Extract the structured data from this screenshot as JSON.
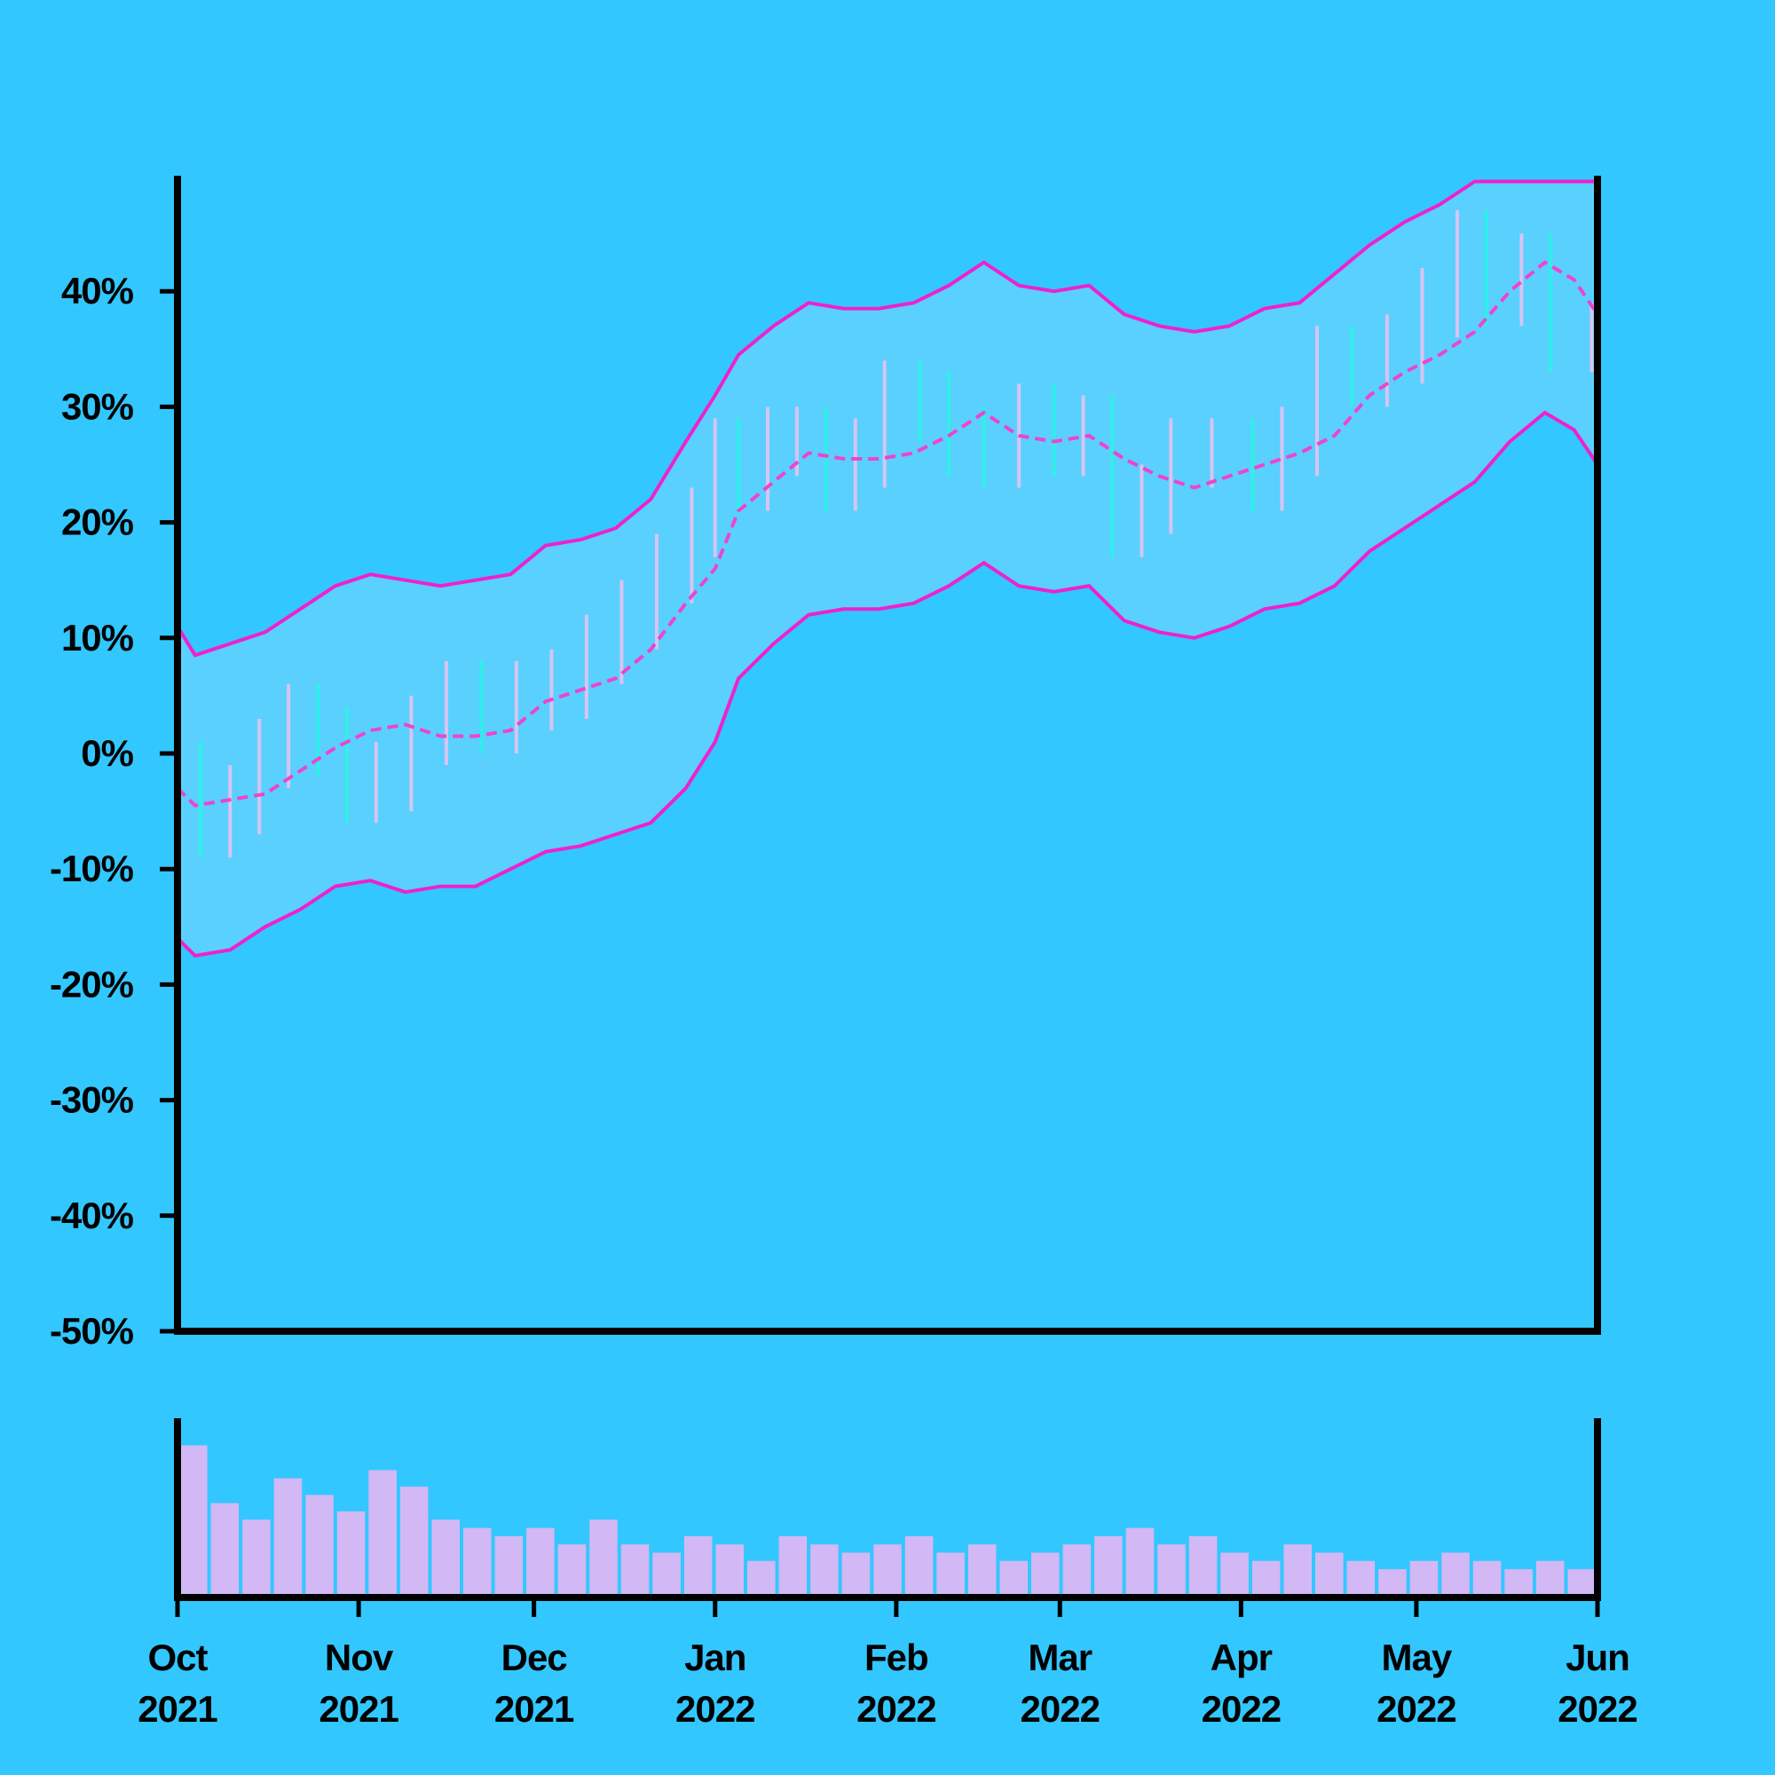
{
  "chart_data": {
    "type": "ohlc",
    "title": "",
    "xlabel": "",
    "ylabel": "",
    "colors": {
      "background": "#33c7ff",
      "band_fill": "#5ad0ff",
      "band_line": "#ee22cc",
      "mid_line": "#ee44cc",
      "up_bar": "#d7c4f2",
      "down_bar": "#2ff0e8",
      "volume_bar": "#d2b8f5",
      "axis": "#000000"
    },
    "price_panel": {
      "ylim": [
        -50,
        50
      ],
      "unit": "%",
      "yticks": [
        {
          "value": 40,
          "label": "40%"
        },
        {
          "value": 30,
          "label": "30%"
        },
        {
          "value": 20,
          "label": "20%"
        },
        {
          "value": 10,
          "label": "10%"
        },
        {
          "value": 0,
          "label": "0%"
        },
        {
          "value": -10,
          "label": "-10%"
        },
        {
          "value": -20,
          "label": "-20%"
        },
        {
          "value": -30,
          "label": "-30%"
        },
        {
          "value": -40,
          "label": "-40%"
        },
        {
          "value": -50,
          "label": "-50%"
        }
      ]
    },
    "xlim": [
      "2021-10-01",
      "2022-06-01"
    ],
    "xticks": [
      {
        "date": "2021-10-01",
        "month": "Oct",
        "year": "2021"
      },
      {
        "date": "2021-11-01",
        "month": "Nov",
        "year": "2021"
      },
      {
        "date": "2021-12-01",
        "month": "Dec",
        "year": "2021"
      },
      {
        "date": "2022-01-01",
        "month": "Jan",
        "year": "2022"
      },
      {
        "date": "2022-02-01",
        "month": "Feb",
        "year": "2022"
      },
      {
        "date": "2022-03-01",
        "month": "Mar",
        "year": "2022"
      },
      {
        "date": "2022-04-01",
        "month": "Apr",
        "year": "2022"
      },
      {
        "date": "2022-05-01",
        "month": "May",
        "year": "2022"
      },
      {
        "date": "2022-06-01",
        "month": "Jun",
        "year": "2022"
      }
    ],
    "series": [
      {
        "role": "close",
        "values": [
          [
            "2021-10-01",
            -2
          ],
          [
            "2021-10-05",
            -6
          ],
          [
            "2021-10-10",
            -4
          ],
          [
            "2021-10-15",
            0
          ],
          [
            "2021-10-20",
            3
          ],
          [
            "2021-10-25",
            1
          ],
          [
            "2021-10-30",
            -3
          ],
          [
            "2021-11-04",
            -2
          ],
          [
            "2021-11-10",
            2
          ],
          [
            "2021-11-16",
            5
          ],
          [
            "2021-11-22",
            3
          ],
          [
            "2021-11-28",
            5
          ],
          [
            "2021-12-04",
            6
          ],
          [
            "2021-12-10",
            9
          ],
          [
            "2021-12-16",
            12
          ],
          [
            "2021-12-22",
            16
          ],
          [
            "2021-12-28",
            20
          ],
          [
            "2022-01-01",
            26
          ],
          [
            "2022-01-05",
            24
          ],
          [
            "2022-01-10",
            27
          ],
          [
            "2022-01-15",
            27
          ],
          [
            "2022-01-20",
            24
          ],
          [
            "2022-01-25",
            26
          ],
          [
            "2022-01-30",
            31
          ],
          [
            "2022-02-05",
            30
          ],
          [
            "2022-02-10",
            27
          ],
          [
            "2022-02-16",
            26
          ],
          [
            "2022-02-22",
            29
          ],
          [
            "2022-02-28",
            27
          ],
          [
            "2022-03-05",
            28
          ],
          [
            "2022-03-10",
            20
          ],
          [
            "2022-03-15",
            22
          ],
          [
            "2022-03-20",
            26
          ],
          [
            "2022-03-27",
            26
          ],
          [
            "2022-04-03",
            24
          ],
          [
            "2022-04-08",
            27
          ],
          [
            "2022-04-14",
            34
          ],
          [
            "2022-04-20",
            33
          ],
          [
            "2022-04-26",
            35
          ],
          [
            "2022-05-02",
            39
          ],
          [
            "2022-05-08",
            44
          ],
          [
            "2022-05-13",
            40
          ],
          [
            "2022-05-19",
            42
          ],
          [
            "2022-05-24",
            36
          ],
          [
            "2022-05-31",
            36
          ]
        ]
      },
      {
        "role": "moving_average",
        "values": [
          [
            "2021-10-01",
            -3
          ],
          [
            "2021-10-04",
            -4.5
          ],
          [
            "2021-10-10",
            -4
          ],
          [
            "2021-10-16",
            -3.5
          ],
          [
            "2021-10-22",
            -1.5
          ],
          [
            "2021-10-28",
            0.5
          ],
          [
            "2021-11-03",
            2
          ],
          [
            "2021-11-09",
            2.5
          ],
          [
            "2021-11-15",
            1.5
          ],
          [
            "2021-11-21",
            1.5
          ],
          [
            "2021-11-27",
            2
          ],
          [
            "2021-12-03",
            4.5
          ],
          [
            "2021-12-09",
            5.5
          ],
          [
            "2021-12-15",
            6.5
          ],
          [
            "2021-12-21",
            9
          ],
          [
            "2021-12-27",
            13
          ],
          [
            "2022-01-01",
            16
          ],
          [
            "2022-01-05",
            21
          ],
          [
            "2022-01-11",
            23.5
          ],
          [
            "2022-01-17",
            26
          ],
          [
            "2022-01-23",
            25.5
          ],
          [
            "2022-01-29",
            25.5
          ],
          [
            "2022-02-04",
            26
          ],
          [
            "2022-02-10",
            27.5
          ],
          [
            "2022-02-16",
            29.5
          ],
          [
            "2022-02-22",
            27.5
          ],
          [
            "2022-02-28",
            27
          ],
          [
            "2022-03-06",
            27.5
          ],
          [
            "2022-03-12",
            25.5
          ],
          [
            "2022-03-18",
            24
          ],
          [
            "2022-03-24",
            23
          ],
          [
            "2022-03-30",
            24
          ],
          [
            "2022-04-05",
            25
          ],
          [
            "2022-04-11",
            26
          ],
          [
            "2022-04-17",
            27.5
          ],
          [
            "2022-04-23",
            31
          ],
          [
            "2022-04-29",
            33
          ],
          [
            "2022-05-05",
            34.5
          ],
          [
            "2022-05-11",
            36.5
          ],
          [
            "2022-05-17",
            40
          ],
          [
            "2022-05-23",
            42.5
          ],
          [
            "2022-05-28",
            41
          ],
          [
            "2022-06-01",
            38
          ]
        ]
      },
      {
        "role": "upper_band",
        "values": [
          [
            "2021-10-01",
            11
          ],
          [
            "2021-10-04",
            8.5
          ],
          [
            "2021-10-10",
            9.5
          ],
          [
            "2021-10-16",
            10.5
          ],
          [
            "2021-10-22",
            12.5
          ],
          [
            "2021-10-28",
            14.5
          ],
          [
            "2021-11-03",
            15.5
          ],
          [
            "2021-11-09",
            15
          ],
          [
            "2021-11-15",
            14.5
          ],
          [
            "2021-11-21",
            15
          ],
          [
            "2021-11-27",
            15.5
          ],
          [
            "2021-12-03",
            18
          ],
          [
            "2021-12-09",
            18.5
          ],
          [
            "2021-12-15",
            19.5
          ],
          [
            "2021-12-21",
            22
          ],
          [
            "2021-12-27",
            27
          ],
          [
            "2022-01-01",
            31
          ],
          [
            "2022-01-05",
            34.5
          ],
          [
            "2022-01-11",
            37
          ],
          [
            "2022-01-17",
            39
          ],
          [
            "2022-01-23",
            38.5
          ],
          [
            "2022-01-29",
            38.5
          ],
          [
            "2022-02-04",
            39
          ],
          [
            "2022-02-10",
            40.5
          ],
          [
            "2022-02-16",
            42.5
          ],
          [
            "2022-02-22",
            40.5
          ],
          [
            "2022-02-28",
            40
          ],
          [
            "2022-03-06",
            40.5
          ],
          [
            "2022-03-12",
            38
          ],
          [
            "2022-03-18",
            37
          ],
          [
            "2022-03-24",
            36.5
          ],
          [
            "2022-03-30",
            37
          ],
          [
            "2022-04-05",
            38.5
          ],
          [
            "2022-04-11",
            39
          ],
          [
            "2022-04-17",
            41.5
          ],
          [
            "2022-04-23",
            44
          ],
          [
            "2022-04-29",
            46
          ],
          [
            "2022-05-05",
            47.5
          ],
          [
            "2022-05-11",
            49.5
          ],
          [
            "2022-05-17",
            49.5
          ],
          [
            "2022-05-23",
            49.5
          ],
          [
            "2022-05-28",
            49.5
          ],
          [
            "2022-06-01",
            49.5
          ]
        ]
      },
      {
        "role": "lower_band",
        "values": [
          [
            "2021-10-01",
            -16
          ],
          [
            "2021-10-04",
            -17.5
          ],
          [
            "2021-10-10",
            -17
          ],
          [
            "2021-10-16",
            -15
          ],
          [
            "2021-10-22",
            -13.5
          ],
          [
            "2021-10-28",
            -11.5
          ],
          [
            "2021-11-03",
            -11
          ],
          [
            "2021-11-09",
            -12
          ],
          [
            "2021-11-15",
            -11.5
          ],
          [
            "2021-11-21",
            -11.5
          ],
          [
            "2021-11-27",
            -10
          ],
          [
            "2021-12-03",
            -8.5
          ],
          [
            "2021-12-09",
            -8
          ],
          [
            "2021-12-15",
            -7
          ],
          [
            "2021-12-21",
            -6
          ],
          [
            "2021-12-27",
            -3
          ],
          [
            "2022-01-01",
            1
          ],
          [
            "2022-01-05",
            6.5
          ],
          [
            "2022-01-11",
            9.5
          ],
          [
            "2022-01-17",
            12
          ],
          [
            "2022-01-23",
            12.5
          ],
          [
            "2022-01-29",
            12.5
          ],
          [
            "2022-02-04",
            13
          ],
          [
            "2022-02-10",
            14.5
          ],
          [
            "2022-02-16",
            16.5
          ],
          [
            "2022-02-22",
            14.5
          ],
          [
            "2022-02-28",
            14
          ],
          [
            "2022-03-06",
            14.5
          ],
          [
            "2022-03-12",
            11.5
          ],
          [
            "2022-03-18",
            10.5
          ],
          [
            "2022-03-24",
            10
          ],
          [
            "2022-03-30",
            11
          ],
          [
            "2022-04-05",
            12.5
          ],
          [
            "2022-04-11",
            13
          ],
          [
            "2022-04-17",
            14.5
          ],
          [
            "2022-04-23",
            17.5
          ],
          [
            "2022-04-29",
            19.5
          ],
          [
            "2022-05-05",
            21.5
          ],
          [
            "2022-05-11",
            23.5
          ],
          [
            "2022-05-17",
            27
          ],
          [
            "2022-05-23",
            29.5
          ],
          [
            "2022-05-28",
            28
          ],
          [
            "2022-06-01",
            25
          ]
        ]
      }
    ],
    "volume_panel": {
      "levels": [
        0.9,
        0.55,
        0.45,
        0.7,
        0.6,
        0.5,
        0.75,
        0.65,
        0.45,
        0.4,
        0.35,
        0.4,
        0.3,
        0.45,
        0.3,
        0.25,
        0.35,
        0.3,
        0.2,
        0.35,
        0.3,
        0.25,
        0.3,
        0.35,
        0.25,
        0.3,
        0.2,
        0.25,
        0.3,
        0.35,
        0.4,
        0.3,
        0.35,
        0.25,
        0.2,
        0.3,
        0.25,
        0.2,
        0.15,
        0.2,
        0.25,
        0.2,
        0.15,
        0.2,
        0.15
      ]
    }
  }
}
